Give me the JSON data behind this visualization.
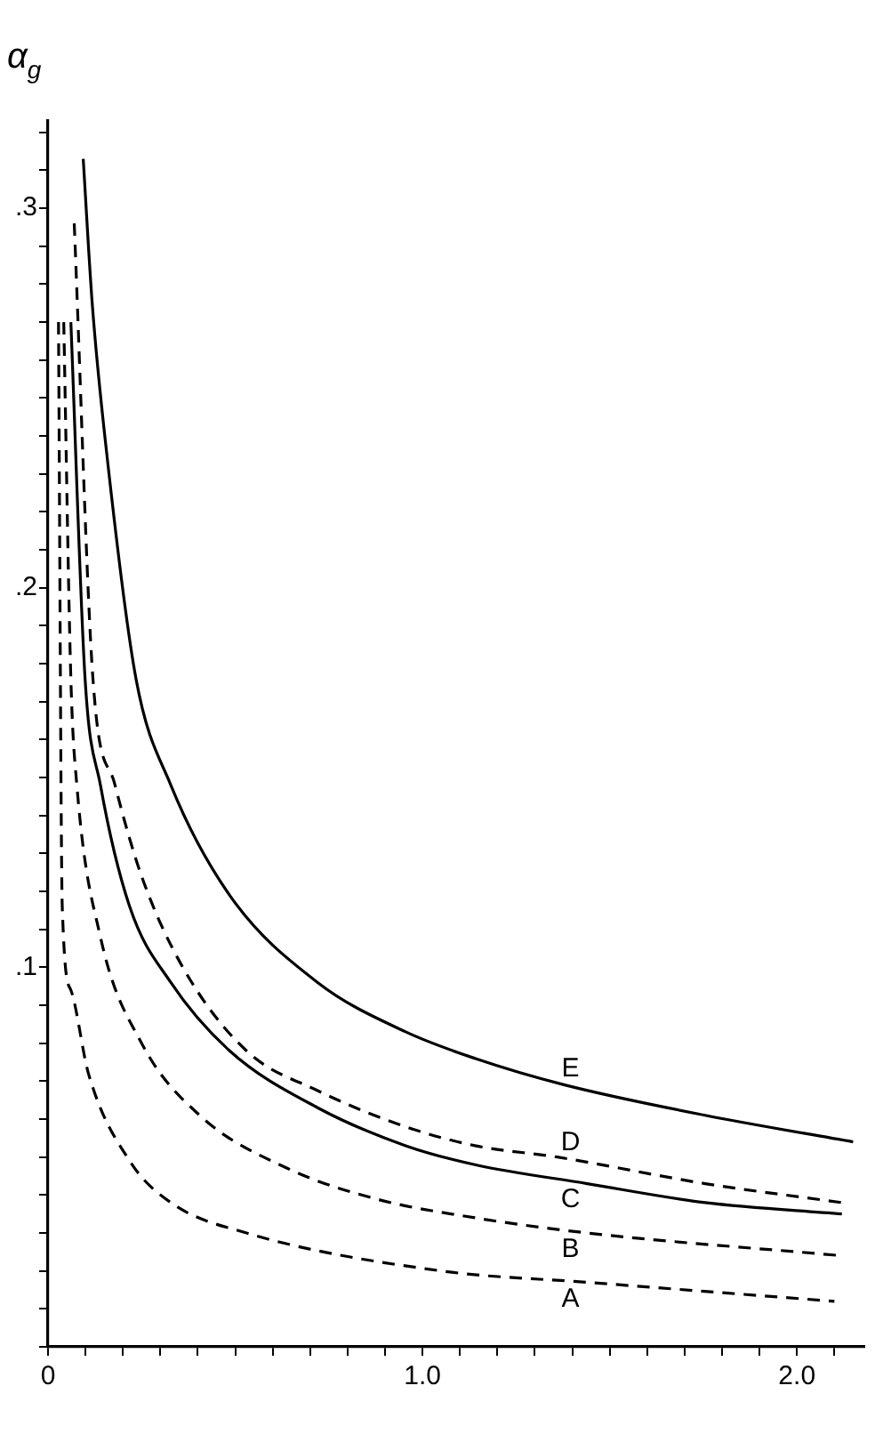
{
  "chart_data": {
    "type": "line",
    "ylabel": "α$_{g}$",
    "xlim": [
      0,
      2.18
    ],
    "ylim": [
      0,
      0.323
    ],
    "xticks": [
      {
        "value": 0,
        "label": "0"
      },
      {
        "value": 0.1,
        "label": null
      },
      {
        "value": 0.2,
        "label": null
      },
      {
        "value": 0.3,
        "label": null
      },
      {
        "value": 0.4,
        "label": null
      },
      {
        "value": 0.5,
        "label": null
      },
      {
        "value": 0.6,
        "label": null
      },
      {
        "value": 0.7,
        "label": null
      },
      {
        "value": 0.8,
        "label": null
      },
      {
        "value": 0.9,
        "label": null
      },
      {
        "value": 1,
        "label": "1.0"
      },
      {
        "value": 1.1,
        "label": null
      },
      {
        "value": 1.2,
        "label": null
      },
      {
        "value": 1.3,
        "label": null
      },
      {
        "value": 1.4,
        "label": null
      },
      {
        "value": 1.5,
        "label": null
      },
      {
        "value": 1.6,
        "label": null
      },
      {
        "value": 1.7,
        "label": null
      },
      {
        "value": 1.8,
        "label": null
      },
      {
        "value": 1.9,
        "label": null
      },
      {
        "value": 2,
        "label": "2.0"
      },
      {
        "value": 2.1,
        "label": null
      }
    ],
    "yticks": [
      {
        "value": 0,
        "label": null
      },
      {
        "value": 0.01,
        "label": null
      },
      {
        "value": 0.02,
        "label": null
      },
      {
        "value": 0.03,
        "label": null
      },
      {
        "value": 0.04,
        "label": null
      },
      {
        "value": 0.05,
        "label": null
      },
      {
        "value": 0.06,
        "label": null
      },
      {
        "value": 0.07,
        "label": null
      },
      {
        "value": 0.08,
        "label": null
      },
      {
        "value": 0.09,
        "label": null
      },
      {
        "value": 0.1,
        "label": ".1"
      },
      {
        "value": 0.11,
        "label": null
      },
      {
        "value": 0.12,
        "label": null
      },
      {
        "value": 0.13,
        "label": null
      },
      {
        "value": 0.14,
        "label": null
      },
      {
        "value": 0.15,
        "label": null
      },
      {
        "value": 0.16,
        "label": null
      },
      {
        "value": 0.17,
        "label": null
      },
      {
        "value": 0.18,
        "label": null
      },
      {
        "value": 0.19,
        "label": null
      },
      {
        "value": 0.2,
        "label": ".2"
      },
      {
        "value": 0.21,
        "label": null
      },
      {
        "value": 0.22,
        "label": null
      },
      {
        "value": 0.23,
        "label": null
      },
      {
        "value": 0.24,
        "label": null
      },
      {
        "value": 0.25,
        "label": null
      },
      {
        "value": 0.26,
        "label": null
      },
      {
        "value": 0.27,
        "label": null
      },
      {
        "value": 0.28,
        "label": null
      },
      {
        "value": 0.29,
        "label": null
      },
      {
        "value": 0.3,
        "label": ".3"
      },
      {
        "value": 0.31,
        "label": null
      },
      {
        "value": 0.32,
        "label": null
      }
    ],
    "grid": false,
    "legend": false,
    "marker": "none",
    "series": [
      {
        "name": "A",
        "color": "#000000",
        "line_style": "dashed",
        "x": [
          0.028,
          0.038,
          0.061,
          0.108,
          0.218,
          0.328,
          0.53,
          1.05,
          1.44,
          2.1
        ],
        "values": [
          0.27,
          0.116,
          0.094,
          0.072,
          0.049,
          0.038,
          0.03,
          0.02,
          0.017,
          0.012
        ]
      },
      {
        "name": "B",
        "color": "#000000",
        "line_style": "dashed",
        "x": [
          0.042,
          0.061,
          0.077,
          0.14,
          0.25,
          0.405,
          0.64,
          0.875,
          1.14,
          1.44,
          2.12
        ],
        "values": [
          0.27,
          0.176,
          0.148,
          0.108,
          0.08,
          0.061,
          0.047,
          0.039,
          0.034,
          0.03,
          0.024
        ]
      },
      {
        "name": "C",
        "color": "#000000",
        "line_style": "solid",
        "x": [
          0.061,
          0.099,
          0.14,
          0.218,
          0.328,
          0.485,
          0.72,
          0.955,
          1.14,
          1.44,
          1.755,
          2.12
        ],
        "values": [
          0.27,
          0.176,
          0.148,
          0.116,
          0.096,
          0.078,
          0.063,
          0.053,
          0.048,
          0.043,
          0.038,
          0.035
        ]
      },
      {
        "name": "D",
        "color": "#000000",
        "line_style": "dashed",
        "x": [
          0.07,
          0.12,
          0.179,
          0.25,
          0.36,
          0.53,
          0.72,
          0.955,
          1.14,
          1.36,
          1.755,
          2.12
        ],
        "values": [
          0.296,
          0.176,
          0.148,
          0.124,
          0.1,
          0.078,
          0.0675,
          0.058,
          0.053,
          0.05,
          0.043,
          0.038
        ]
      },
      {
        "name": "E",
        "color": "#000000",
        "line_style": "solid",
        "x": [
          0.094,
          0.118,
          0.155,
          0.235,
          0.328,
          0.485,
          0.72,
          0.955,
          1.14,
          1.38,
          1.755,
          2.15
        ],
        "values": [
          0.313,
          0.275,
          0.237,
          0.176,
          0.148,
          0.119,
          0.096,
          0.083,
          0.076,
          0.069,
          0.061,
          0.054
        ]
      }
    ]
  }
}
